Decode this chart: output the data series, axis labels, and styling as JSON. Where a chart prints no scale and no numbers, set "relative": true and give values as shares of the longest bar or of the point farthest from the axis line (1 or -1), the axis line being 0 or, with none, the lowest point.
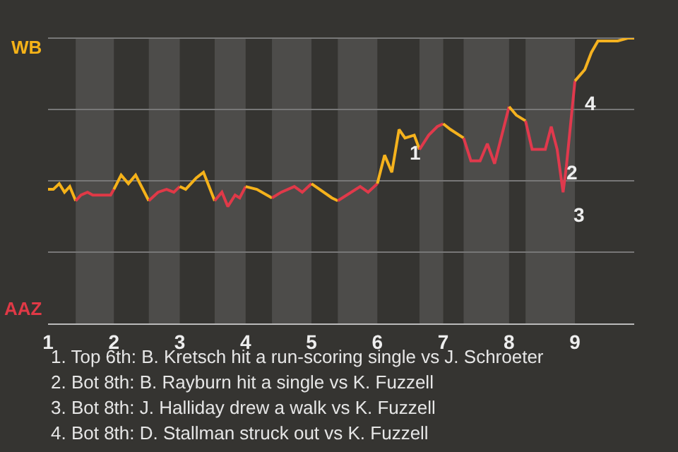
{
  "chart_data": {
    "type": "line",
    "relative": true,
    "series": [
      {
        "name": "WB",
        "color": "#f5b218",
        "x": [
          1,
          1.08,
          1.17,
          1.25,
          1.33,
          1.42
        ],
        "values": [
          0.47,
          0.47,
          0.49,
          0.46,
          0.48,
          0.43
        ]
      },
      {
        "name": "AAZ",
        "color": "#e03946",
        "x": [
          1.42,
          1.5,
          1.6,
          1.68,
          1.95,
          2
        ],
        "values": [
          0.43,
          0.45,
          0.46,
          0.45,
          0.45,
          0.47
        ]
      },
      {
        "color": "#f5b219",
        "x": [
          2,
          2.11,
          2.22,
          2.33,
          2.53
        ],
        "values": [
          0.47,
          0.52,
          0.49,
          0.52,
          0.43
        ]
      },
      {
        "color": "#e03947",
        "x": [
          2.53,
          2.67,
          2.8,
          2.91,
          3
        ],
        "values": [
          0.43,
          0.46,
          0.47,
          0.46,
          0.48
        ]
      },
      {
        "color": "#f5b21a",
        "x": [
          3,
          3.09,
          3.25,
          3.36,
          3.53
        ],
        "values": [
          0.48,
          0.47,
          0.51,
          0.53,
          0.43
        ]
      },
      {
        "color": "#e03948",
        "x": [
          3.53,
          3.64,
          3.73,
          3.84,
          3.91,
          4
        ],
        "values": [
          0.43,
          0.46,
          0.41,
          0.45,
          0.44,
          0.48
        ]
      },
      {
        "color": "#f5b21b",
        "x": [
          4,
          4.17,
          4.4
        ],
        "values": [
          0.48,
          0.47,
          0.44
        ]
      },
      {
        "color": "#e03949",
        "x": [
          4.4,
          4.54,
          4.74,
          4.86,
          5
        ],
        "values": [
          0.44,
          0.46,
          0.48,
          0.46,
          0.49
        ]
      },
      {
        "color": "#f5b21c",
        "x": [
          5,
          5.31,
          5.4
        ],
        "values": [
          0.49,
          0.44,
          0.43
        ]
      },
      {
        "color": "#e0394a",
        "x": [
          5.4,
          5.74,
          5.86,
          6
        ],
        "values": [
          0.43,
          0.48,
          0.46,
          0.49
        ]
      },
      {
        "color": "#f5b21d",
        "x": [
          6,
          6.11,
          6.22,
          6.33,
          6.42,
          6.56,
          6.64
        ],
        "values": [
          0.49,
          0.59,
          0.53,
          0.68,
          0.65,
          0.66,
          0.61
        ]
      },
      {
        "color": "#e0394b",
        "x": [
          6.64,
          6.78,
          6.91,
          7
        ],
        "values": [
          0.61,
          0.66,
          0.69,
          0.7
        ]
      },
      {
        "color": "#f5b21e",
        "x": [
          7,
          7.11,
          7.31
        ],
        "values": [
          0.7,
          0.68,
          0.65
        ]
      },
      {
        "color": "#e0394c",
        "x": [
          7.31,
          7.42,
          7.56,
          7.67,
          7.78,
          8
        ],
        "values": [
          0.65,
          0.57,
          0.57,
          0.63,
          0.56,
          0.76
        ]
      },
      {
        "color": "#f5b21f",
        "x": [
          8,
          8.11,
          8.25
        ],
        "values": [
          0.76,
          0.73,
          0.71
        ]
      },
      {
        "color": "#e0394d",
        "x": [
          8.25,
          8.35,
          8.55,
          8.64,
          8.73,
          8.82,
          8.87,
          9
        ],
        "values": [
          0.71,
          0.61,
          0.61,
          0.69,
          0.61,
          0.46,
          0.55,
          0.85
        ]
      },
      {
        "color": "#f5b220",
        "x": [
          9,
          9.15,
          9.25,
          9.35,
          9.5,
          9.65,
          9.8,
          9.9
        ],
        "values": [
          0.85,
          0.89,
          0.95,
          0.99,
          0.99,
          0.99,
          1,
          1
        ]
      }
    ],
    "xlim": [
      1,
      9.9
    ],
    "xticks": [
      1,
      2,
      3,
      4,
      5,
      6,
      7,
      8,
      9
    ],
    "bands": [
      {
        "axis": "x",
        "from": 1.42,
        "to": 2,
        "color": "#4d4c4a"
      },
      {
        "axis": "x",
        "from": 2.53,
        "to": 3,
        "color": "#4d4c4a"
      },
      {
        "axis": "x",
        "from": 3.53,
        "to": 4,
        "color": "#4d4c4a"
      },
      {
        "axis": "x",
        "from": 4.4,
        "to": 5,
        "color": "#4d4c4a"
      },
      {
        "axis": "x",
        "from": 5.4,
        "to": 6,
        "color": "#4d4c4a"
      },
      {
        "axis": "x",
        "from": 6.64,
        "to": 7,
        "color": "#4d4c4a"
      },
      {
        "axis": "x",
        "from": 7.31,
        "to": 8,
        "color": "#4d4c4a"
      },
      {
        "axis": "x",
        "from": 8.25,
        "to": 9,
        "color": "#4d4c4a"
      }
    ],
    "grid": "y",
    "legend": false,
    "marker": "none",
    "line_style": "solid",
    "annotations": [
      {
        "text": "1",
        "x": 6.33,
        "y": 0.68
      },
      {
        "text": "2",
        "x": 8.73,
        "y": 0.61
      },
      {
        "text": "3",
        "x": 8.82,
        "y": 0.46
      },
      {
        "text": "4",
        "x": 9,
        "y": 0.85
      },
      "1. Top 6th: B. Kretsch hit a run-scoring single vs J. Schroeter",
      "2. Bot 8th: B. Rayburn hit a single vs K. Fuzzell",
      "3. Bot 8th: J. Halliday drew a walk vs K. Fuzzell",
      "4. Bot 8th: D. Stallman struck out vs K. Fuzzell"
    ]
  }
}
